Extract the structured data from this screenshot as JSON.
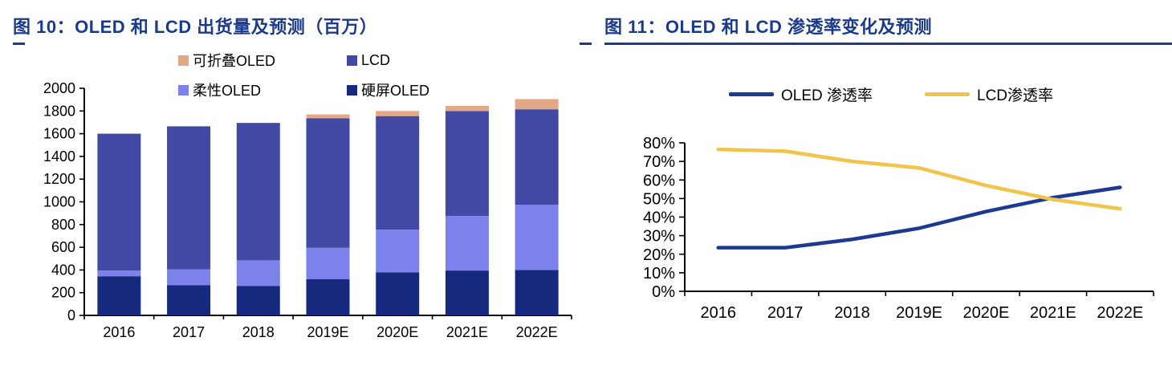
{
  "theme": {
    "title_color": "#1b3a8c",
    "axis_color": "#000000",
    "background": "#ffffff"
  },
  "chart_data": [
    {
      "id": "fig10",
      "type": "bar",
      "stacked": true,
      "title": "图 10：OLED 和 LCD 出货量及预测（百万）",
      "categories": [
        "2016",
        "2017",
        "2018",
        "2019E",
        "2020E",
        "2021E",
        "2022E"
      ],
      "series": [
        {
          "name": "硬屏OLED",
          "color": "#17297f",
          "values": [
            345,
            265,
            260,
            320,
            380,
            395,
            400
          ]
        },
        {
          "name": "柔性OLED",
          "color": "#7c81ec",
          "values": [
            50,
            140,
            225,
            275,
            375,
            480,
            575
          ]
        },
        {
          "name": "LCD",
          "color": "#4149a5",
          "values": [
            1205,
            1260,
            1210,
            1140,
            1000,
            925,
            840
          ]
        },
        {
          "name": "可折叠OLED",
          "color": "#e5a886",
          "values": [
            0,
            0,
            0,
            35,
            45,
            45,
            90
          ]
        }
      ],
      "ylim": [
        0,
        2000
      ],
      "y_ticks": [
        0,
        200,
        400,
        600,
        800,
        1000,
        1200,
        1400,
        1600,
        1800,
        2000
      ],
      "y_tick_labels": [
        "0",
        "200",
        "400",
        "600",
        "800",
        "1000",
        "1200",
        "1400",
        "1600",
        "1800",
        "2000"
      ],
      "legend": [
        {
          "label": "可折叠OLED",
          "color": "#e5a886"
        },
        {
          "label": "LCD",
          "color": "#4149a5"
        },
        {
          "label": "柔性OLED",
          "color": "#7c81ec"
        },
        {
          "label": "硬屏OLED",
          "color": "#17297f"
        }
      ],
      "legend_position": "top",
      "grid": false,
      "xlabel": "",
      "ylabel": ""
    },
    {
      "id": "fig11",
      "type": "line",
      "title": "图 11：OLED 和 LCD 渗透率变化及预测",
      "categories": [
        "2016",
        "2017",
        "2018",
        "2019E",
        "2020E",
        "2021E",
        "2022E"
      ],
      "series": [
        {
          "name": "OLED 渗透率",
          "color": "#1d3a92",
          "values": [
            23.5,
            23.5,
            28,
            34,
            43,
            50.5,
            56
          ]
        },
        {
          "name": "LCD渗透率",
          "color": "#f1c44c",
          "values": [
            76.5,
            75.5,
            70,
            66.5,
            57,
            49.5,
            44.5
          ]
        }
      ],
      "ylim": [
        0,
        80
      ],
      "y_ticks": [
        0,
        10,
        20,
        30,
        40,
        50,
        60,
        70,
        80
      ],
      "y_tick_labels": [
        "0%",
        "10%",
        "20%",
        "30%",
        "40%",
        "50%",
        "60%",
        "70%",
        "80%"
      ],
      "legend": [
        {
          "label": "OLED 渗透率",
          "color": "#1d3a92"
        },
        {
          "label": "LCD渗透率",
          "color": "#f1c44c"
        }
      ],
      "legend_position": "top",
      "grid": false,
      "xlabel": "",
      "ylabel": ""
    }
  ]
}
